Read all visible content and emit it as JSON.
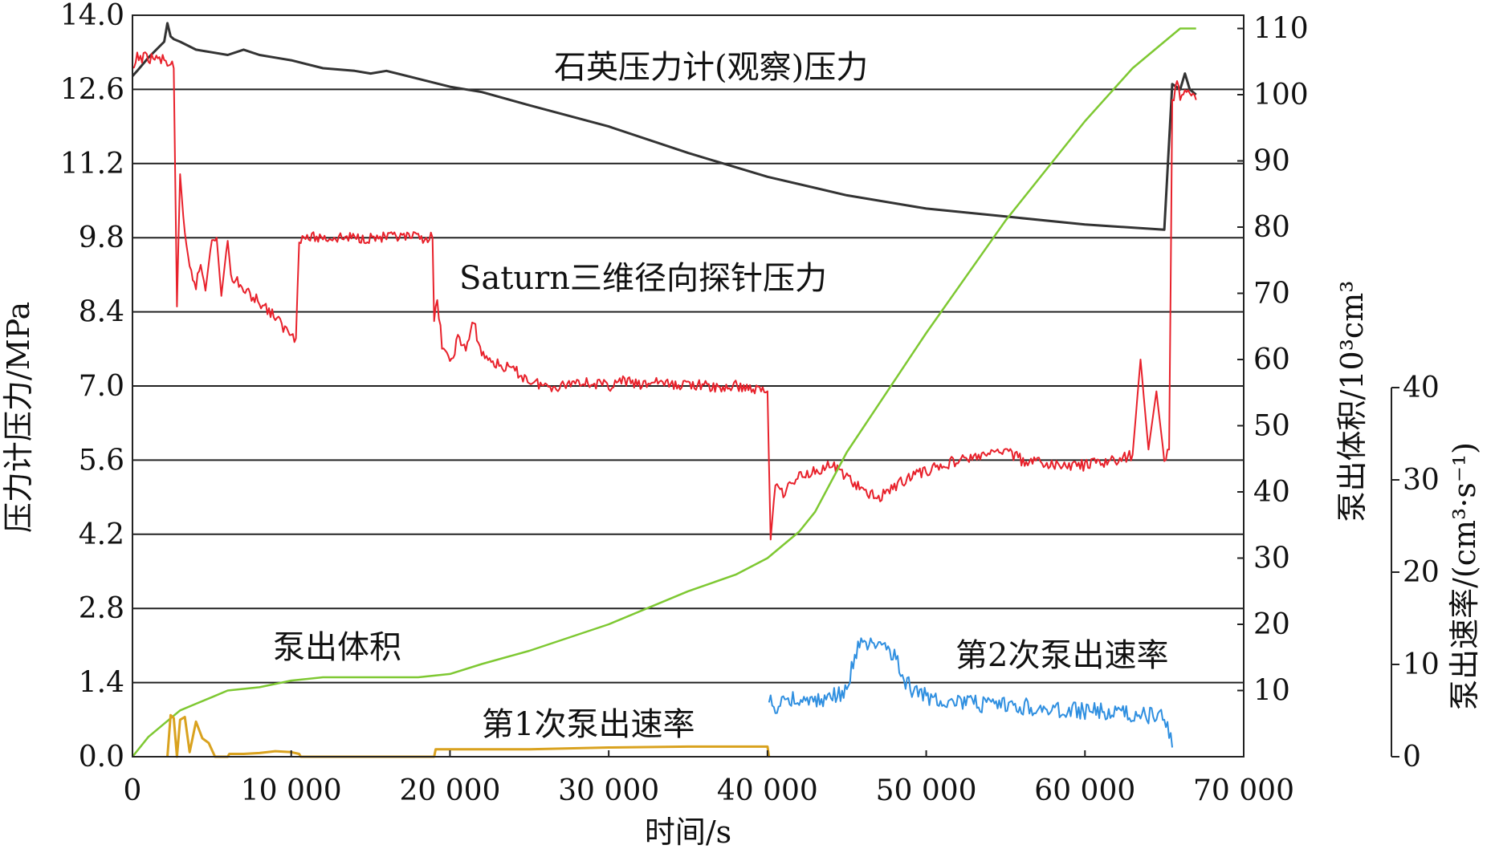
{
  "chart_data": {
    "type": "line",
    "xlabel": "时间/s",
    "ylabel_left": "压力计压力/MPa",
    "ylabel_right1": "泵出体积/10³cm³",
    "ylabel_right2": "泵出速率/(cm³·s⁻¹)",
    "xlim": [
      0,
      70000
    ],
    "ylim_left": [
      0,
      14.0
    ],
    "ylim_right1": [
      0,
      112
    ],
    "ylim_right2": [
      0,
      40
    ],
    "x_ticks": [
      "0",
      "10 000",
      "20 000",
      "30 000",
      "40 000",
      "50 000",
      "60 000",
      "70 000"
    ],
    "y_left_ticks": [
      "0.0",
      "1.4",
      "2.8",
      "4.2",
      "5.6",
      "7.0",
      "8.4",
      "9.8",
      "11.2",
      "12.6",
      "14.0"
    ],
    "y_right1_ticks": [
      "10",
      "20",
      "30",
      "40",
      "50",
      "60",
      "70",
      "80",
      "90",
      "100",
      "110"
    ],
    "y_right2_ticks": [
      "0",
      "10",
      "20",
      "30",
      "40"
    ],
    "horizontal_grid": true,
    "annotations": {
      "quartz": "石英压力计(观察)压力",
      "saturn": "Saturn三维径向探针压力",
      "volume": "泵出体积",
      "rate1": "第1次泵出速率",
      "rate2": "第2次泵出速率"
    },
    "series": [
      {
        "name": "石英压力计(观察)压力",
        "axis": "left",
        "color": "#333333",
        "x": [
          0,
          300,
          1000,
          2000,
          2200,
          2400,
          2600,
          3000,
          4000,
          5000,
          6000,
          7000,
          8000,
          9000,
          10000,
          12000,
          14000,
          15000,
          16000,
          18000,
          20000,
          22000,
          25000,
          30000,
          35000,
          40000,
          45000,
          50000,
          55000,
          60000,
          65000,
          65500,
          66000,
          66300,
          66600,
          67000
        ],
        "y": [
          12.85,
          12.95,
          13.2,
          13.5,
          13.85,
          13.6,
          13.55,
          13.5,
          13.35,
          13.3,
          13.25,
          13.35,
          13.25,
          13.2,
          13.15,
          13.0,
          12.95,
          12.9,
          12.95,
          12.8,
          12.65,
          12.55,
          12.3,
          11.9,
          11.4,
          10.95,
          10.6,
          10.35,
          10.2,
          10.05,
          9.95,
          12.7,
          12.6,
          12.9,
          12.6,
          12.5
        ]
      },
      {
        "name": "Saturn三维径向探针压力",
        "axis": "left",
        "color": "#e8212b",
        "x": [
          0,
          300,
          1000,
          2000,
          2600,
          2800,
          3000,
          3300,
          3600,
          4000,
          4300,
          4600,
          5000,
          5300,
          5600,
          6000,
          6300,
          6600,
          7000,
          8000,
          9000,
          9500,
          10000,
          10300,
          10500,
          12000,
          15000,
          18000,
          18900,
          19000,
          19200,
          19500,
          20000,
          20500,
          21000,
          21500,
          22000,
          23000,
          24000,
          25000,
          26000,
          27000,
          28000,
          29000,
          30000,
          31000,
          32000,
          33000,
          34000,
          35000,
          36000,
          37000,
          38000,
          39000,
          40000,
          40200,
          40500,
          41000,
          42000,
          43000,
          44000,
          45000,
          46000,
          47000,
          48000,
          49000,
          50000,
          52000,
          54000,
          55000,
          56000,
          58000,
          60000,
          62000,
          63000,
          63500,
          64000,
          64500,
          65000,
          65300,
          65500,
          65800,
          66000,
          66500,
          67000
        ],
        "y": [
          12.9,
          13.2,
          13.2,
          13.15,
          13.0,
          8.5,
          11.0,
          9.8,
          9.2,
          8.9,
          9.3,
          8.8,
          9.8,
          9.8,
          8.7,
          9.8,
          8.9,
          9.0,
          8.8,
          8.6,
          8.3,
          8.1,
          8.0,
          7.9,
          9.8,
          9.8,
          9.8,
          9.8,
          9.8,
          8.2,
          8.6,
          7.8,
          7.4,
          7.9,
          7.7,
          8.2,
          7.6,
          7.4,
          7.3,
          7.1,
          7.0,
          7.0,
          7.1,
          7.05,
          7.0,
          7.1,
          7.0,
          7.1,
          7.0,
          7.05,
          7.0,
          6.95,
          7.0,
          6.95,
          6.9,
          4.1,
          5.2,
          5.0,
          5.3,
          5.4,
          5.5,
          5.3,
          5.0,
          4.9,
          5.1,
          5.3,
          5.4,
          5.6,
          5.7,
          5.8,
          5.6,
          5.5,
          5.5,
          5.6,
          5.7,
          7.5,
          5.8,
          6.9,
          5.6,
          5.8,
          12.3,
          12.7,
          12.5,
          12.6,
          12.4
        ]
      },
      {
        "name": "泵出体积",
        "axis": "right1",
        "color": "#7ec832",
        "x": [
          0,
          1000,
          2000,
          3000,
          4000,
          5000,
          6000,
          8000,
          10000,
          12000,
          15000,
          18000,
          20000,
          22000,
          25000,
          30000,
          35000,
          38000,
          40000,
          41000,
          42000,
          43000,
          45000,
          50000,
          55000,
          60000,
          63000,
          65000,
          66000,
          67000
        ],
        "y": [
          0,
          3,
          5,
          7,
          8,
          9,
          10,
          10.5,
          11.5,
          12,
          12,
          12,
          12.5,
          14,
          16,
          20,
          25,
          27.5,
          30,
          32,
          34,
          37,
          46,
          64,
          81,
          96,
          104,
          108,
          110,
          110
        ]
      },
      {
        "name": "第1次泵出速率",
        "axis": "right2",
        "color": "#d9a21f",
        "x": [
          2200,
          2400,
          2600,
          2800,
          3000,
          3300,
          3600,
          4000,
          4400,
          4800,
          5200,
          6000,
          6100,
          7000,
          8000,
          9000,
          10000,
          10500,
          10600,
          19000,
          19100,
          25000,
          30000,
          35000,
          40000,
          40100
        ],
        "y": [
          0,
          4.5,
          4.2,
          0,
          4.0,
          4.3,
          0.5,
          3.8,
          2.0,
          1.5,
          0,
          0,
          0.3,
          0.3,
          0.4,
          0.6,
          0.5,
          0.3,
          0,
          0,
          0.8,
          0.8,
          1.0,
          1.1,
          1.1,
          0
        ]
      },
      {
        "name": "第2次泵出速率",
        "axis": "right2",
        "color": "#2f8fe0",
        "x": [
          40100,
          40500,
          41000,
          42000,
          43000,
          44000,
          45000,
          45500,
          46000,
          46500,
          47000,
          47500,
          48000,
          48500,
          49000,
          50000,
          52000,
          54000,
          56000,
          58000,
          60000,
          62000,
          64000,
          65000,
          65500
        ],
        "y": [
          6,
          5,
          6.5,
          6,
          6,
          6.5,
          7,
          11,
          12.5,
          12,
          11.5,
          12,
          11,
          8.5,
          7.5,
          6.5,
          6,
          5.5,
          5.5,
          5,
          5,
          4.8,
          4.5,
          4.5,
          1
        ]
      }
    ]
  }
}
